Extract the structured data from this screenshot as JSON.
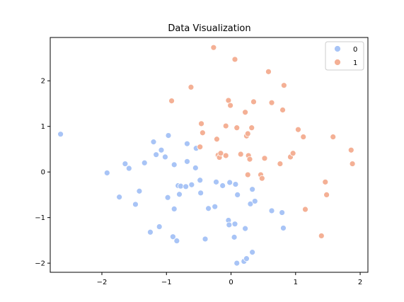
{
  "chart_data": {
    "type": "scatter",
    "title": "Data Visualization",
    "xlabel": "",
    "ylabel": "",
    "xlim": [
      -2.8,
      2.12
    ],
    "ylim": [
      -2.2,
      2.95
    ],
    "xticks": [
      -2,
      -1,
      0,
      1,
      2
    ],
    "yticks": [
      -2,
      -1,
      0,
      1,
      2
    ],
    "xtick_labels": [
      "−2",
      "−1",
      "0",
      "1",
      "2"
    ],
    "ytick_labels": [
      "−2",
      "−1",
      "0",
      "1",
      "2"
    ],
    "grid": false,
    "legend_position": "top-right",
    "series": [
      {
        "name": "0",
        "color": "#a8c4f6",
        "points": [
          [
            -2.64,
            0.83
          ],
          [
            -1.92,
            -0.02
          ],
          [
            -1.73,
            -0.55
          ],
          [
            -1.64,
            0.18
          ],
          [
            -1.58,
            0.08
          ],
          [
            -1.48,
            -0.71
          ],
          [
            -1.42,
            -0.42
          ],
          [
            -1.34,
            0.2
          ],
          [
            -1.25,
            -1.32
          ],
          [
            -1.2,
            0.66
          ],
          [
            -1.16,
            0.38
          ],
          [
            -1.11,
            -1.2
          ],
          [
            -1.08,
            0.48
          ],
          [
            -1.02,
            0.33
          ],
          [
            -0.98,
            -0.56
          ],
          [
            -0.97,
            0.8
          ],
          [
            -0.9,
            -1.42
          ],
          [
            -0.88,
            0.16
          ],
          [
            -0.88,
            -0.81
          ],
          [
            -0.84,
            -1.51
          ],
          [
            -0.82,
            -0.3
          ],
          [
            -0.8,
            -0.49
          ],
          [
            -0.78,
            -0.31
          ],
          [
            -0.7,
            -0.32
          ],
          [
            -0.68,
            0.62
          ],
          [
            -0.68,
            0.23
          ],
          [
            -0.61,
            -0.28
          ],
          [
            -0.55,
            0.09
          ],
          [
            -0.54,
            0.52
          ],
          [
            -0.48,
            -0.18
          ],
          [
            -0.47,
            -0.46
          ],
          [
            -0.4,
            -1.47
          ],
          [
            -0.35,
            -0.8
          ],
          [
            -0.25,
            -0.76
          ],
          [
            -0.23,
            -0.22
          ],
          [
            -0.13,
            -0.3
          ],
          [
            -0.04,
            -1.06
          ],
          [
            -0.03,
            -1.16
          ],
          [
            -0.02,
            -0.23
          ],
          [
            0.05,
            -1.43
          ],
          [
            0.06,
            -1.14
          ],
          [
            0.07,
            -0.27
          ],
          [
            0.09,
            -2.0
          ],
          [
            0.1,
            -0.5
          ],
          [
            0.2,
            -1.96
          ],
          [
            0.22,
            -1.24
          ],
          [
            0.24,
            -1.9
          ],
          [
            0.3,
            -0.7
          ],
          [
            0.33,
            -0.38
          ],
          [
            0.33,
            -1.76
          ],
          [
            0.37,
            -0.64
          ],
          [
            0.63,
            -0.85
          ],
          [
            0.79,
            -0.89
          ],
          [
            0.81,
            -1.23
          ]
        ]
      },
      {
        "name": "1",
        "color": "#f4b095",
        "points": [
          [
            -0.92,
            1.56
          ],
          [
            -0.62,
            1.86
          ],
          [
            -0.27,
            2.73
          ],
          [
            -0.48,
            0.55
          ],
          [
            -0.46,
            1.06
          ],
          [
            -0.44,
            0.86
          ],
          [
            -0.22,
            0.72
          ],
          [
            -0.2,
            0.37
          ],
          [
            -0.18,
            0.32
          ],
          [
            -0.16,
            0.41
          ],
          [
            -0.08,
            1.01
          ],
          [
            -0.08,
            0.36
          ],
          [
            -0.04,
            1.57
          ],
          [
            -0.01,
            1.46
          ],
          [
            0.06,
            2.47
          ],
          [
            0.09,
            0.97
          ],
          [
            0.15,
            0.39
          ],
          [
            0.22,
            1.31
          ],
          [
            0.24,
            0.79
          ],
          [
            0.26,
            0.84
          ],
          [
            0.26,
            -0.06
          ],
          [
            0.27,
            0.36
          ],
          [
            0.29,
            0.28
          ],
          [
            0.32,
            0.97
          ],
          [
            0.35,
            1.54
          ],
          [
            0.46,
            -0.06
          ],
          [
            0.48,
            -0.14
          ],
          [
            0.52,
            0.3
          ],
          [
            0.58,
            2.2
          ],
          [
            0.63,
            1.52
          ],
          [
            0.76,
            0.18
          ],
          [
            0.8,
            1.36
          ],
          [
            0.82,
            1.9
          ],
          [
            0.92,
            0.33
          ],
          [
            0.96,
            0.41
          ],
          [
            1.04,
            0.93
          ],
          [
            1.12,
            0.77
          ],
          [
            1.15,
            -0.82
          ],
          [
            1.4,
            -1.4
          ],
          [
            1.46,
            -0.22
          ],
          [
            1.48,
            -0.5
          ],
          [
            1.58,
            0.77
          ],
          [
            1.86,
            0.48
          ],
          [
            1.88,
            0.18
          ]
        ]
      }
    ]
  }
}
